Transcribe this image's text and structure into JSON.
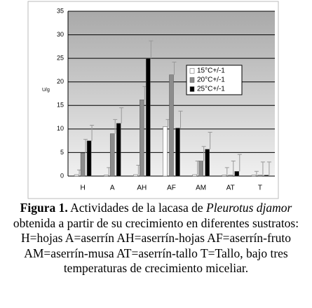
{
  "chart_data": {
    "type": "bar",
    "y_label": "U/g",
    "categories": [
      "H",
      "A",
      "AH",
      "AF",
      "AM",
      "AT",
      "T"
    ],
    "series": [
      {
        "name": "15°C+/-1",
        "color": "#ffffff",
        "values": [
          0.3,
          0.2,
          0.3,
          10.5,
          0.3,
          0.2,
          0.2
        ],
        "errors": [
          1.0,
          1.6,
          2.0,
          1.5,
          2.9,
          1.6,
          0.8
        ]
      },
      {
        "name": "20°C+/-1",
        "color": "#8c8c8c",
        "values": [
          4.9,
          9.0,
          16.2,
          21.5,
          3.2,
          0.2,
          0.2
        ],
        "errors": [
          2.9,
          3.0,
          2.8,
          2.7,
          3.1,
          3.0,
          2.8
        ]
      },
      {
        "name": "25°C+/-1",
        "color": "#000000",
        "values": [
          7.5,
          11.2,
          25.0,
          10.2,
          5.7,
          1.0,
          0.2
        ],
        "errors": [
          3.3,
          3.3,
          3.7,
          3.6,
          3.6,
          3.6,
          2.8
        ]
      }
    ],
    "ylim": [
      0,
      35
    ],
    "yticks": [
      0,
      5,
      10,
      15,
      20,
      25,
      30,
      35
    ],
    "grid": true
  },
  "caption": {
    "label": "Figura 1.",
    "text_1": " Actividades de la lacasa de ",
    "species": "Pleurotus djamor",
    "text_2": " obtenida a partir de su crecimiento en diferentes sustratos: H=hojas A=aserrín AH=aserrín-hojas AF=aserrín-fruto AM=aserrín-musa AT=aserrín-tallo T=Tallo, bajo tres temperaturas de crecimiento miceliar."
  }
}
